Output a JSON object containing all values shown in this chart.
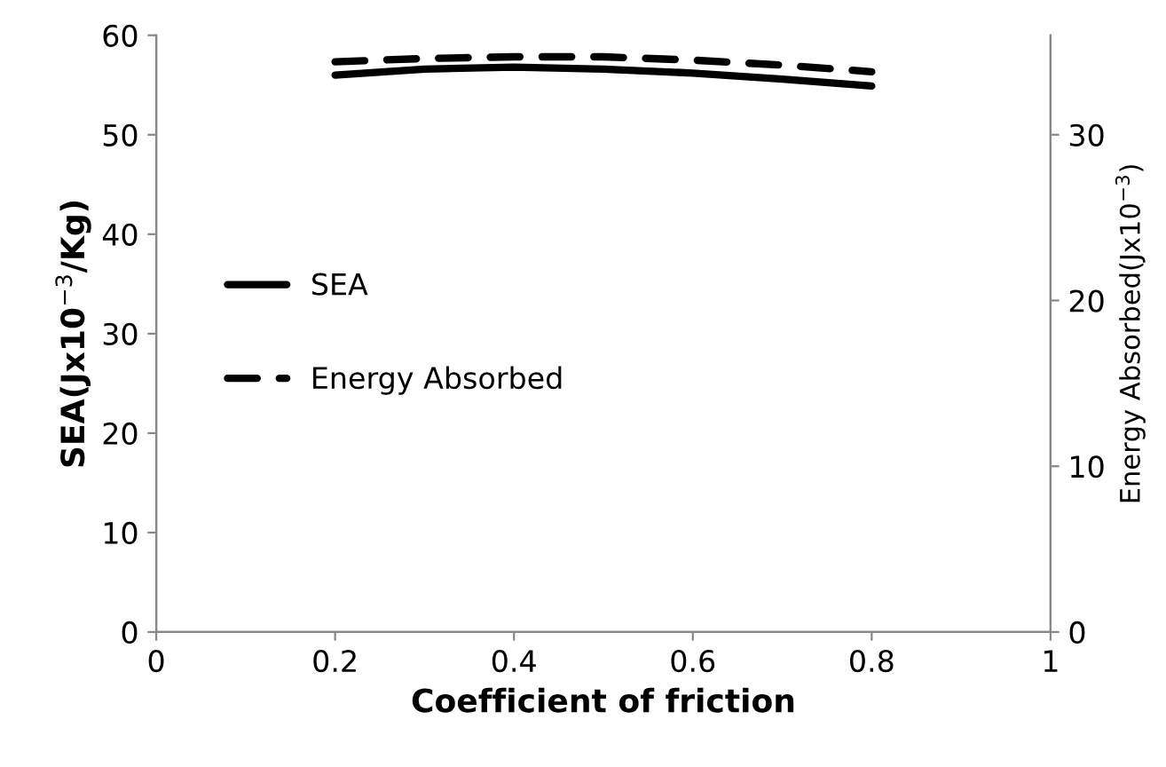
{
  "chart_data": {
    "type": "line",
    "xlabel": "Coefficient of friction",
    "ylabel": "SEA(Jx10$^{−3}$/Kg)",
    "y2label": "Energy Absorbed(Jx10$^{−3}$)",
    "x": [
      0.2,
      0.3,
      0.4,
      0.5,
      0.6,
      0.7,
      0.8
    ],
    "series": [
      {
        "name": "SEA",
        "color": "#000000",
        "line_style": "solid",
        "values": [
          56.0,
          56.6,
          56.8,
          56.6,
          56.2,
          55.6,
          54.9
        ]
      },
      {
        "name": "Energy Absorbed",
        "color": "#000000",
        "line_style": "dashed",
        "axis": "y2",
        "values": [
          34.4,
          34.6,
          34.7,
          34.7,
          34.5,
          34.2,
          33.8
        ]
      }
    ],
    "xlim": [
      0,
      1
    ],
    "xticks": [
      0,
      0.2,
      0.4,
      0.6,
      0.8,
      1
    ],
    "ylim": [
      0,
      60
    ],
    "yticks": [
      0,
      10,
      20,
      30,
      40,
      50,
      60
    ],
    "y2lim": [
      0,
      36
    ],
    "y2ticks": [
      0,
      10,
      20,
      30
    ],
    "grid": false,
    "legend": "left",
    "marker": "none"
  }
}
